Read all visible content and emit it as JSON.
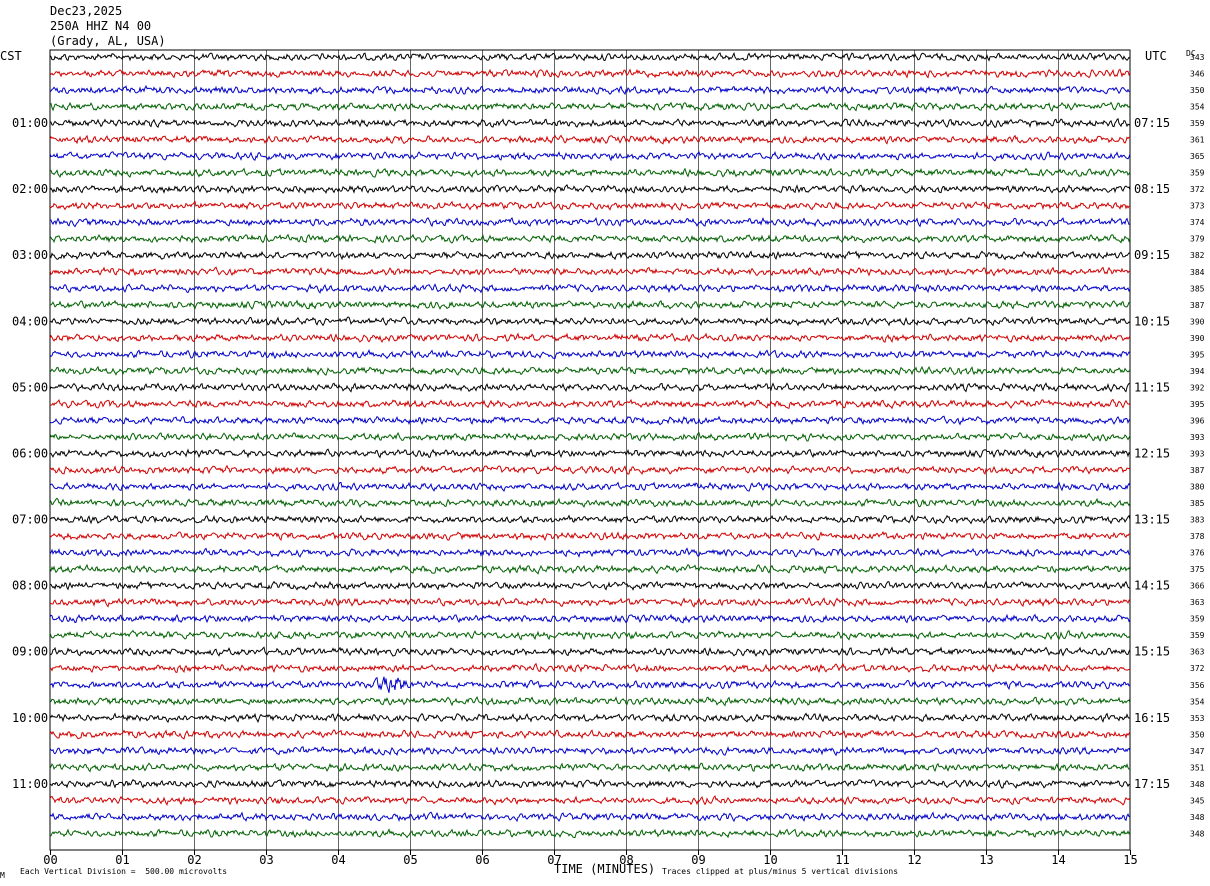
{
  "header": {
    "date": "Dec23,2025",
    "station": "250A HHZ N4 00",
    "location": "(Grady, AL, USA)"
  },
  "left_axis_label": "CST",
  "right_axis_label": "UTC",
  "dc_label": "DC",
  "footer": {
    "scale_note": "Each Vertical Division =  500.00 microvolts",
    "clip_note": "Traces clipped at plus/minus 5 vertical divisions",
    "corner_mark": "M"
  },
  "colors": {
    "trace_cycle": [
      "#000000",
      "#d00000",
      "#0000c8",
      "#006000"
    ],
    "grid": "#000000",
    "background": "#ffffff"
  },
  "chart_data": {
    "type": "line",
    "title": "",
    "xlabel": "TIME (MINUTES)",
    "ylabel": "",
    "x_range": [
      0,
      15
    ],
    "x_ticks": [
      "00",
      "01",
      "02",
      "03",
      "04",
      "05",
      "06",
      "07",
      "08",
      "09",
      "10",
      "11",
      "12",
      "13",
      "14",
      "15"
    ],
    "minutes_per_trace": 15,
    "trace_count": 48,
    "left_hour_labels": [
      {
        "trace_index": 4,
        "label": "01:00"
      },
      {
        "trace_index": 8,
        "label": "02:00"
      },
      {
        "trace_index": 12,
        "label": "03:00"
      },
      {
        "trace_index": 16,
        "label": "04:00"
      },
      {
        "trace_index": 20,
        "label": "05:00"
      },
      {
        "trace_index": 24,
        "label": "06:00"
      },
      {
        "trace_index": 28,
        "label": "07:00"
      },
      {
        "trace_index": 32,
        "label": "08:00"
      },
      {
        "trace_index": 36,
        "label": "09:00"
      },
      {
        "trace_index": 40,
        "label": "10:00"
      },
      {
        "trace_index": 44,
        "label": "11:00"
      }
    ],
    "right_hour_labels": [
      {
        "trace_index": 4,
        "label": "07:15"
      },
      {
        "trace_index": 8,
        "label": "08:15"
      },
      {
        "trace_index": 12,
        "label": "09:15"
      },
      {
        "trace_index": 16,
        "label": "10:15"
      },
      {
        "trace_index": 20,
        "label": "11:15"
      },
      {
        "trace_index": 24,
        "label": "12:15"
      },
      {
        "trace_index": 28,
        "label": "13:15"
      },
      {
        "trace_index": 32,
        "label": "14:15"
      },
      {
        "trace_index": 36,
        "label": "15:15"
      },
      {
        "trace_index": 40,
        "label": "16:15"
      },
      {
        "trace_index": 44,
        "label": "17:15"
      }
    ],
    "dc_offsets": [
      343,
      346,
      350,
      354,
      359,
      361,
      365,
      359,
      372,
      373,
      374,
      379,
      382,
      384,
      385,
      387,
      390,
      390,
      395,
      394,
      392,
      395,
      396,
      393,
      393,
      387,
      380,
      385,
      383,
      378,
      376,
      375,
      366,
      363,
      359,
      359,
      363,
      372,
      356,
      354,
      353,
      350,
      347,
      351,
      348,
      345,
      348,
      348
    ],
    "events": [
      {
        "trace_index": 38,
        "minute_start": 4.4,
        "minute_end": 5.0,
        "amplitude_divisions": 1.6
      }
    ]
  }
}
